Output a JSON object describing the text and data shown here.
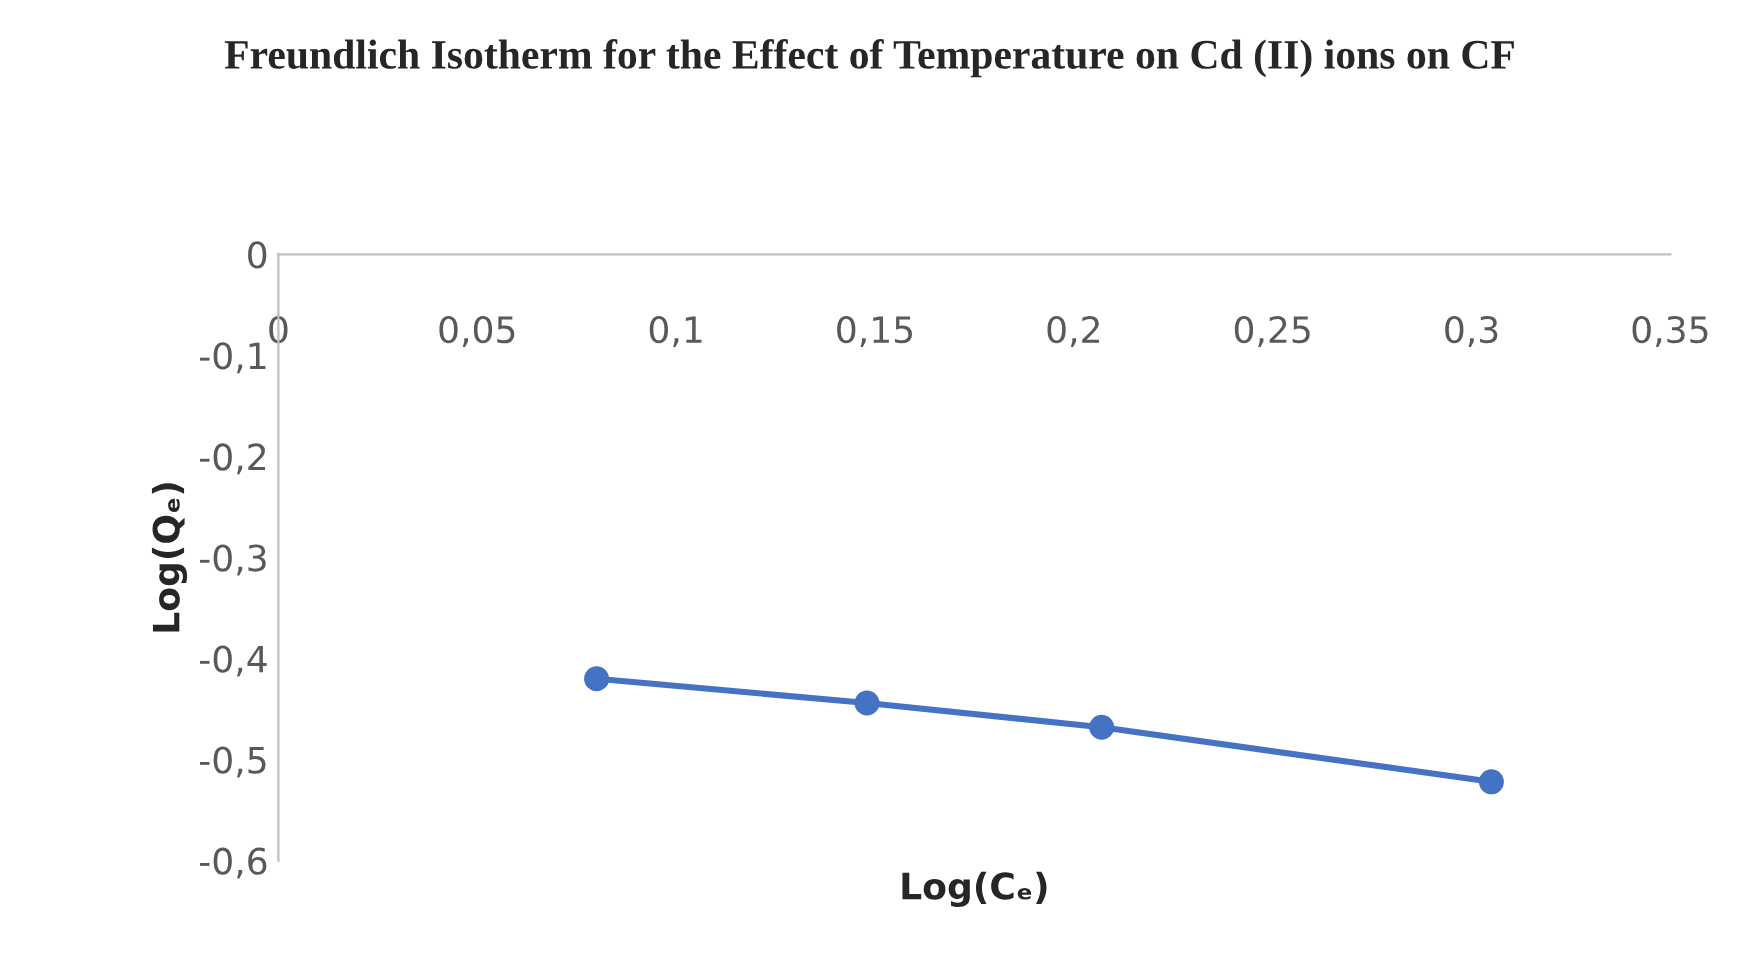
{
  "chart_data": {
    "type": "line",
    "title": "Freundlich Isotherm for the Effect of Temperature on Cd (II) ions on CF",
    "xlabel": "Log(Cₑ)",
    "ylabel": "Log(Qₑ)",
    "x": [
      0.08,
      0.148,
      0.207,
      0.305
    ],
    "series": [
      {
        "color": "#4472c4",
        "values": [
          -0.42,
          -0.444,
          -0.468,
          -0.522
        ]
      }
    ],
    "xlim": [
      0,
      0.35
    ],
    "ylim": [
      -0.6,
      0
    ],
    "xticks": [
      {
        "value": 0,
        "label": "0"
      },
      {
        "value": 0.05,
        "label": "0,05"
      },
      {
        "value": 0.1,
        "label": "0,1"
      },
      {
        "value": 0.15,
        "label": "0,15"
      },
      {
        "value": 0.2,
        "label": "0,2"
      },
      {
        "value": 0.25,
        "label": "0,25"
      },
      {
        "value": 0.3,
        "label": "0,3"
      },
      {
        "value": 0.35,
        "label": "0,35"
      }
    ],
    "yticks": [
      {
        "value": -0.6,
        "label": "-0,6"
      },
      {
        "value": -0.5,
        "label": "-0,5"
      },
      {
        "value": -0.4,
        "label": "-0,4"
      },
      {
        "value": -0.3,
        "label": "-0,3"
      },
      {
        "value": -0.2,
        "label": "-0,2"
      },
      {
        "value": -0.1,
        "label": "-0,1"
      },
      {
        "value": 0,
        "label": "0"
      }
    ],
    "marker": "circle",
    "line_style": "solid",
    "grid": false,
    "legend": false
  }
}
